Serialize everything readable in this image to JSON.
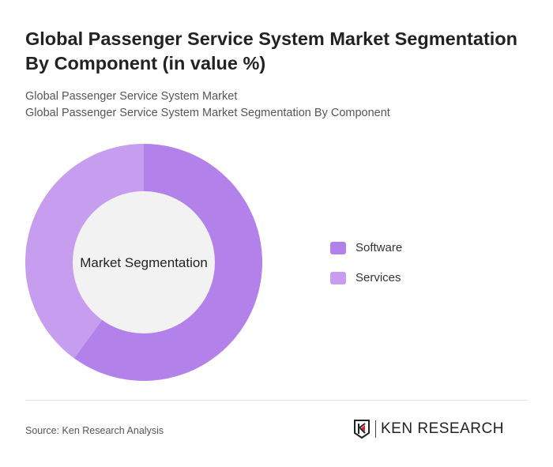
{
  "title": "Global Passenger Service System Market Segmentation By Component (in value %)",
  "subtitle_1": "Global Passenger Service System Market",
  "subtitle_2": "Global Passenger Service System Market Segmentation By Component",
  "chart_data": {
    "type": "pie",
    "variant": "donut",
    "center_label": "Market Segmentation",
    "categories": [
      "Software",
      "Services"
    ],
    "values": [
      60,
      40
    ],
    "colors": [
      "#b381ea",
      "#c69def"
    ],
    "legend_position": "right"
  },
  "footer": {
    "source": "Source: Ken Research Analysis",
    "logo_text": "KEN RESEARCH"
  }
}
